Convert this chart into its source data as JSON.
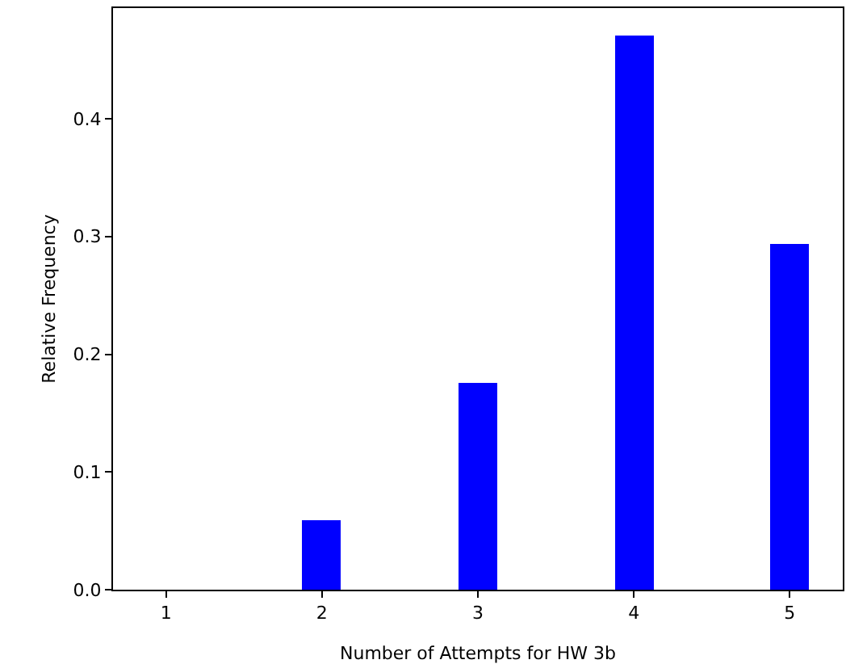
{
  "chart_data": {
    "type": "bar",
    "xlabel": "Number of Attempts for HW 3b",
    "ylabel": "Relative Frequency",
    "x": [
      1,
      2,
      3,
      4,
      5
    ],
    "series": [
      {
        "color": "#0000ff",
        "values": [
          0,
          0.059,
          0.176,
          0.471,
          0.294
        ]
      }
    ],
    "xlim": [
      0.66,
      5.34
    ],
    "xticks": [
      1,
      2,
      3,
      4,
      5
    ],
    "ylim": [
      0,
      0.494
    ],
    "yticks": [
      {
        "value": 0,
        "label": "0.0"
      },
      0.1,
      0.2,
      0.3,
      0.4
    ]
  }
}
